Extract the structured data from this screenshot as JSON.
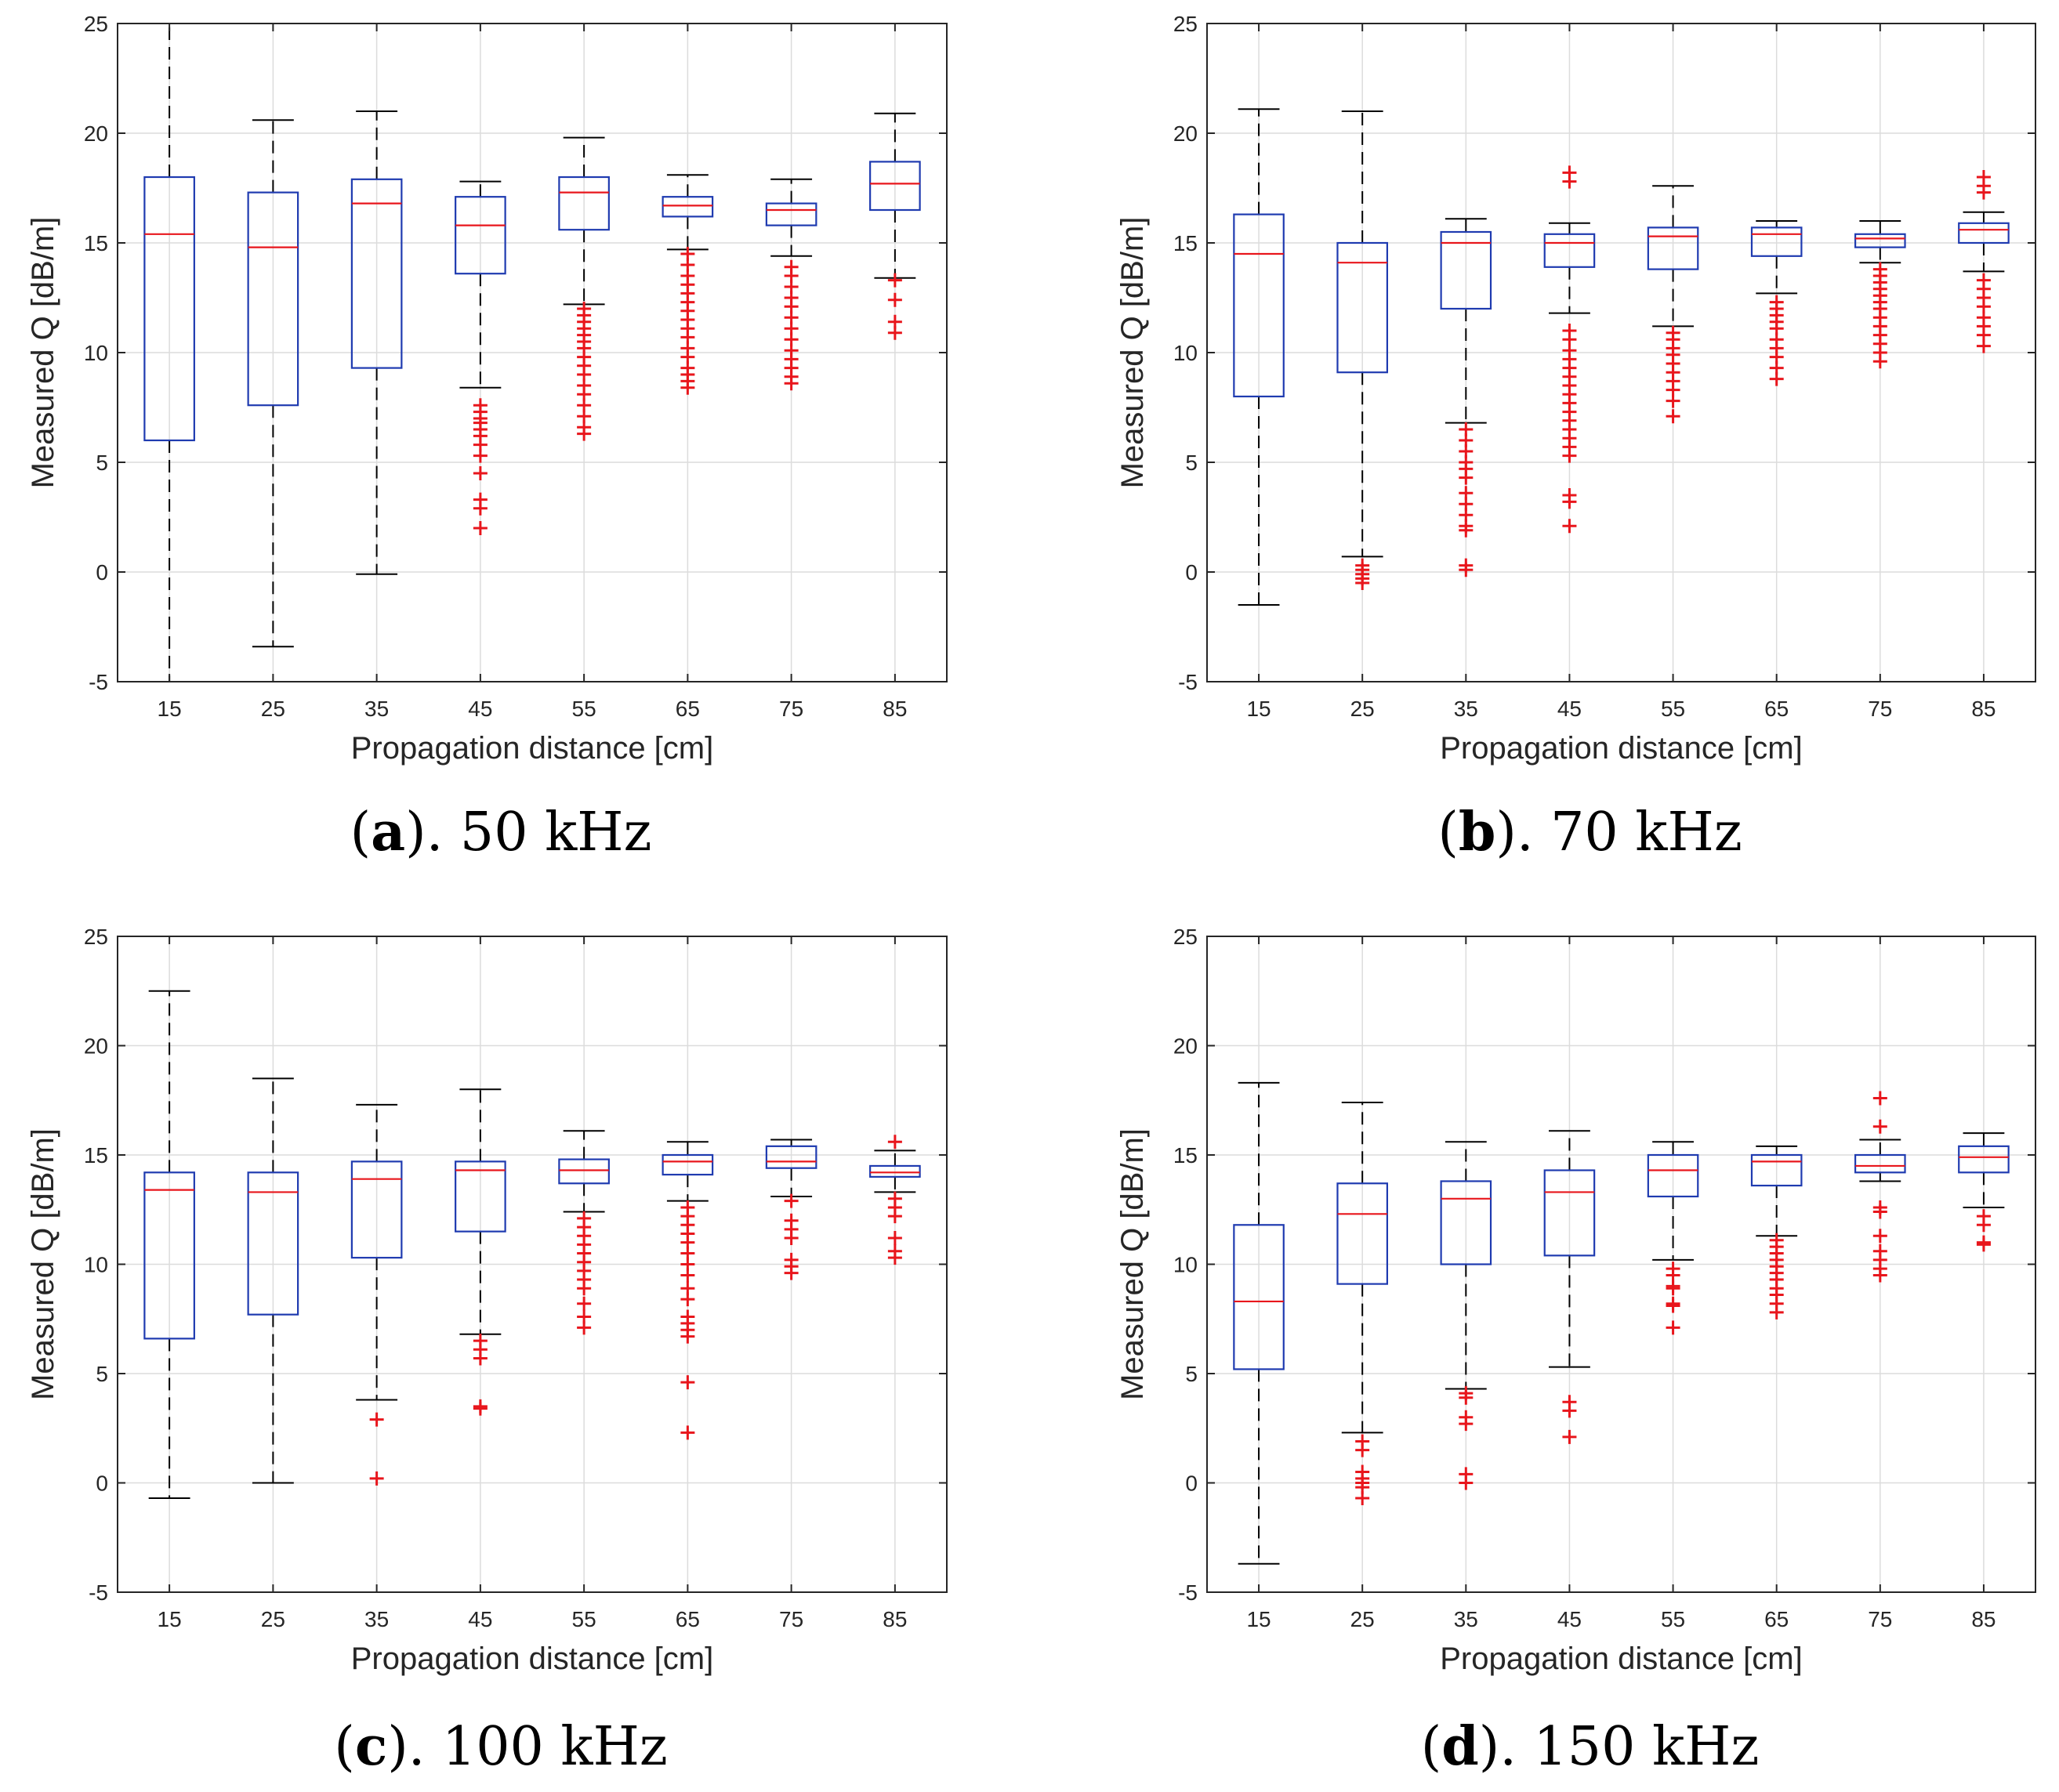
{
  "colors": {
    "box": "#1f3bb0",
    "median": "#e8161c",
    "outlier": "#e8161c",
    "whisker": "#000000",
    "grid": "#dcdcdc",
    "axis": "#262626"
  },
  "chart_data": [
    {
      "type": "box",
      "panel": "a",
      "caption_letter": "a",
      "caption_suffix": ". 50 kHz",
      "xlabel": "Propagation distance [cm]",
      "ylabel": "Measured Q [dB/m]",
      "ylim": [
        -5,
        25
      ],
      "yticks": [
        "-5",
        "0",
        "5",
        "10",
        "15",
        "20",
        "25"
      ],
      "categories": [
        "15",
        "25",
        "35",
        "45",
        "55",
        "65",
        "75",
        "85"
      ],
      "grid": true,
      "boxes": [
        {
          "q1": 6.0,
          "median": 15.4,
          "q3": 18.0,
          "low": -5.0,
          "high": 25.0,
          "outliers": []
        },
        {
          "q1": 7.6,
          "median": 14.8,
          "q3": 17.3,
          "low": -3.4,
          "high": 20.6,
          "outliers": []
        },
        {
          "q1": 9.3,
          "median": 16.8,
          "q3": 17.9,
          "low": -0.1,
          "high": 21.0,
          "outliers": []
        },
        {
          "q1": 13.6,
          "median": 15.8,
          "q3": 17.1,
          "low": 8.4,
          "high": 17.8,
          "outliers": [
            7.6,
            7.3,
            7.0,
            6.8,
            6.5,
            6.2,
            5.8,
            5.3,
            4.5,
            3.3,
            2.9,
            2.0
          ]
        },
        {
          "q1": 15.6,
          "median": 17.3,
          "q3": 18.0,
          "low": 12.2,
          "high": 19.8,
          "outliers": [
            12.0,
            11.7,
            11.4,
            11.1,
            10.8,
            10.5,
            10.2,
            9.8,
            9.4,
            9.0,
            8.5,
            8.1,
            7.6,
            7.1,
            6.6,
            6.3
          ]
        },
        {
          "q1": 16.2,
          "median": 16.7,
          "q3": 17.1,
          "low": 14.7,
          "high": 18.1,
          "outliers": [
            14.5,
            14.0,
            13.5,
            13.1,
            12.7,
            12.3,
            11.9,
            11.5,
            11.1,
            10.7,
            10.2,
            9.8,
            9.3,
            9.0,
            8.7,
            8.4
          ]
        },
        {
          "q1": 15.8,
          "median": 16.5,
          "q3": 16.8,
          "low": 14.4,
          "high": 17.9,
          "outliers": [
            13.9,
            13.5,
            13.0,
            12.5,
            12.1,
            11.6,
            11.1,
            10.6,
            10.1,
            9.7,
            9.3,
            8.9,
            8.6
          ]
        },
        {
          "q1": 16.5,
          "median": 17.7,
          "q3": 18.7,
          "low": 13.4,
          "high": 20.9,
          "outliers": [
            13.3,
            12.4,
            11.4,
            10.9
          ]
        }
      ]
    },
    {
      "type": "box",
      "panel": "b",
      "caption_letter": "b",
      "caption_suffix": ". 70 kHz",
      "xlabel": "Propagation distance [cm]",
      "ylabel": "Measured Q [dB/m]",
      "ylim": [
        -5,
        25
      ],
      "yticks": [
        "-5",
        "0",
        "5",
        "10",
        "15",
        "20",
        "25"
      ],
      "categories": [
        "15",
        "25",
        "35",
        "45",
        "55",
        "65",
        "75",
        "85"
      ],
      "grid": true,
      "boxes": [
        {
          "q1": 8.0,
          "median": 14.5,
          "q3": 16.3,
          "low": -1.5,
          "high": 21.1,
          "outliers": []
        },
        {
          "q1": 9.1,
          "median": 14.1,
          "q3": 15.0,
          "low": 0.7,
          "high": 21.0,
          "outliers": [
            0.3,
            0.1,
            -0.1,
            -0.3,
            -0.5
          ]
        },
        {
          "q1": 12.0,
          "median": 15.0,
          "q3": 15.5,
          "low": 6.8,
          "high": 16.1,
          "outliers": [
            6.5,
            6.0,
            5.5,
            5.0,
            4.7,
            4.3,
            3.6,
            3.1,
            2.6,
            2.1,
            1.9,
            0.3,
            0.1
          ]
        },
        {
          "q1": 13.9,
          "median": 15.0,
          "q3": 15.4,
          "low": 11.8,
          "high": 15.9,
          "outliers": [
            18.2,
            17.8,
            11.0,
            10.6,
            10.1,
            9.7,
            9.3,
            8.9,
            8.5,
            8.1,
            7.7,
            7.3,
            6.9,
            6.5,
            6.1,
            5.7,
            5.3,
            3.5,
            3.2,
            2.1
          ]
        },
        {
          "q1": 13.8,
          "median": 15.3,
          "q3": 15.7,
          "low": 11.2,
          "high": 17.6,
          "outliers": [
            10.9,
            10.6,
            10.2,
            9.9,
            9.5,
            9.1,
            8.7,
            8.3,
            7.8,
            7.1
          ]
        },
        {
          "q1": 14.4,
          "median": 15.4,
          "q3": 15.7,
          "low": 12.7,
          "high": 16.0,
          "outliers": [
            12.3,
            12.0,
            11.7,
            11.4,
            11.1,
            10.6,
            10.2,
            9.8,
            9.3,
            8.8
          ]
        },
        {
          "q1": 14.8,
          "median": 15.2,
          "q3": 15.4,
          "low": 14.1,
          "high": 16.0,
          "outliers": [
            13.8,
            13.5,
            13.2,
            12.9,
            12.6,
            12.3,
            12.0,
            11.6,
            11.2,
            10.8,
            10.4,
            10.0,
            9.6
          ]
        },
        {
          "q1": 15.0,
          "median": 15.6,
          "q3": 15.9,
          "low": 13.7,
          "high": 16.4,
          "outliers": [
            18.0,
            17.6,
            17.3,
            13.3,
            12.9,
            12.5,
            12.1,
            11.6,
            11.2,
            10.8,
            10.3
          ]
        }
      ]
    },
    {
      "type": "box",
      "panel": "c",
      "caption_letter": "c",
      "caption_suffix": ". 100 kHz",
      "xlabel": "Propagation distance [cm]",
      "ylabel": "Measured Q [dB/m]",
      "ylim": [
        -5,
        25
      ],
      "yticks": [
        "-5",
        "0",
        "5",
        "10",
        "15",
        "20",
        "25"
      ],
      "categories": [
        "15",
        "25",
        "35",
        "45",
        "55",
        "65",
        "75",
        "85"
      ],
      "grid": true,
      "boxes": [
        {
          "q1": 6.6,
          "median": 13.4,
          "q3": 14.2,
          "low": -0.7,
          "high": 22.5,
          "outliers": []
        },
        {
          "q1": 7.7,
          "median": 13.3,
          "q3": 14.2,
          "low": 0.0,
          "high": 18.5,
          "outliers": []
        },
        {
          "q1": 10.3,
          "median": 13.9,
          "q3": 14.7,
          "low": 3.8,
          "high": 17.3,
          "outliers": [
            2.9,
            0.2
          ]
        },
        {
          "q1": 11.5,
          "median": 14.3,
          "q3": 14.7,
          "low": 6.8,
          "high": 18.0,
          "outliers": [
            6.5,
            6.1,
            5.7,
            3.5,
            3.4
          ]
        },
        {
          "q1": 13.7,
          "median": 14.3,
          "q3": 14.8,
          "low": 12.4,
          "high": 16.1,
          "outliers": [
            12.1,
            11.7,
            11.3,
            10.9,
            10.5,
            10.1,
            9.7,
            9.3,
            8.9,
            8.2,
            7.6,
            7.1
          ]
        },
        {
          "q1": 14.1,
          "median": 14.7,
          "q3": 15.0,
          "low": 12.9,
          "high": 15.6,
          "outliers": [
            12.6,
            12.2,
            11.8,
            11.4,
            11.0,
            10.5,
            10.0,
            9.5,
            8.9,
            8.4,
            7.6,
            7.3,
            7.0,
            6.7,
            4.6,
            2.3
          ]
        },
        {
          "q1": 14.4,
          "median": 14.7,
          "q3": 15.4,
          "low": 13.1,
          "high": 15.7,
          "outliers": [
            12.9,
            12.0,
            11.6,
            11.2,
            10.2,
            9.9,
            9.6
          ]
        },
        {
          "q1": 14.0,
          "median": 14.2,
          "q3": 14.5,
          "low": 13.3,
          "high": 15.2,
          "outliers": [
            15.6,
            13.0,
            12.6,
            12.2,
            11.2,
            10.6,
            10.3
          ]
        }
      ]
    },
    {
      "type": "box",
      "panel": "d",
      "caption_letter": "d",
      "caption_suffix": ". 150 kHz",
      "xlabel": "Propagation distance [cm]",
      "ylabel": "Measured Q [dB/m]",
      "ylim": [
        -5,
        25
      ],
      "yticks": [
        "-5",
        "0",
        "5",
        "10",
        "15",
        "20",
        "25"
      ],
      "categories": [
        "15",
        "25",
        "35",
        "45",
        "55",
        "65",
        "75",
        "85"
      ],
      "grid": true,
      "boxes": [
        {
          "q1": 5.2,
          "median": 8.3,
          "q3": 11.8,
          "low": -3.7,
          "high": 18.3,
          "outliers": []
        },
        {
          "q1": 9.1,
          "median": 12.3,
          "q3": 13.7,
          "low": 2.3,
          "high": 17.4,
          "outliers": [
            1.9,
            1.5,
            0.5,
            0.2,
            0.0,
            -0.2,
            -0.7
          ]
        },
        {
          "q1": 10.0,
          "median": 13.0,
          "q3": 13.8,
          "low": 4.3,
          "high": 15.6,
          "outliers": [
            4.1,
            3.9,
            3.0,
            2.7,
            0.4,
            0.0
          ]
        },
        {
          "q1": 10.4,
          "median": 13.3,
          "q3": 14.3,
          "low": 5.3,
          "high": 16.1,
          "outliers": [
            3.7,
            3.3,
            2.1
          ]
        },
        {
          "q1": 13.1,
          "median": 14.3,
          "q3": 15.0,
          "low": 10.2,
          "high": 15.6,
          "outliers": [
            9.8,
            9.5,
            9.0,
            8.9,
            8.2,
            8.1,
            7.1
          ]
        },
        {
          "q1": 13.6,
          "median": 14.7,
          "q3": 15.0,
          "low": 11.3,
          "high": 15.4,
          "outliers": [
            11.1,
            10.8,
            10.5,
            10.2,
            9.9,
            9.6,
            9.3,
            8.9,
            8.6,
            8.2,
            7.8
          ]
        },
        {
          "q1": 14.2,
          "median": 14.5,
          "q3": 15.0,
          "low": 13.8,
          "high": 15.7,
          "outliers": [
            17.6,
            16.3,
            12.6,
            12.4,
            11.3,
            10.6,
            10.2,
            9.8,
            9.5
          ]
        },
        {
          "q1": 14.2,
          "median": 14.9,
          "q3": 15.4,
          "low": 12.6,
          "high": 16.0,
          "outliers": [
            12.2,
            11.8,
            11.0,
            10.9
          ]
        }
      ]
    }
  ]
}
